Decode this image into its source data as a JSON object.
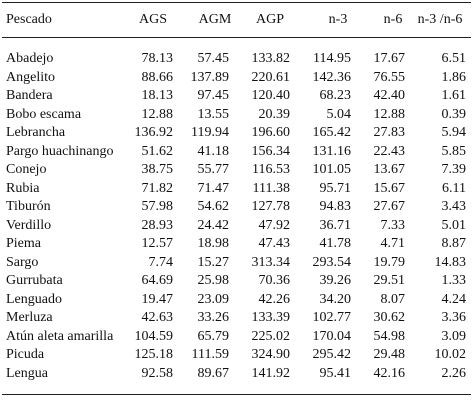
{
  "table": {
    "header": [
      "Pescado",
      "AGS",
      "AGM",
      "AGP",
      "n-3",
      "n-6",
      "n-3 /n-6"
    ],
    "rows": [
      [
        "Abadejo",
        "78.13",
        "57.45",
        "133.82",
        "114.95",
        "17.67",
        "6.51"
      ],
      [
        "Angelito",
        "88.66",
        "137.89",
        "220.61",
        "142.36",
        "76.55",
        "1.86"
      ],
      [
        "Bandera",
        "18.13",
        "97.45",
        "120.40",
        "68.23",
        "42.40",
        "1.61"
      ],
      [
        "Bobo escama",
        "12.88",
        "13.55",
        "20.39",
        "5.04",
        "12.88",
        "0.39"
      ],
      [
        "Lebrancha",
        "136.92",
        "119.94",
        "196.60",
        "165.42",
        "27.83",
        "5.94"
      ],
      [
        "Pargo huachinango",
        "51.62",
        "41.18",
        "156.34",
        "131.16",
        "22.43",
        "5.85"
      ],
      [
        "Conejo",
        "38.75",
        "55.77",
        "116.53",
        "101.05",
        "13.67",
        "7.39"
      ],
      [
        "Rubia",
        "71.82",
        "71.47",
        "111.38",
        "95.71",
        "15.67",
        "6.11"
      ],
      [
        "Tiburón",
        "57.98",
        "54.62",
        "127.78",
        "94.83",
        "27.67",
        "3.43"
      ],
      [
        "Verdillo",
        "28.93",
        "24.42",
        "47.92",
        "36.71",
        "7.33",
        "5.01"
      ],
      [
        "Piema",
        "12.57",
        "18.98",
        "47.43",
        "41.78",
        "4.71",
        "8.87"
      ],
      [
        "Sargo",
        "7.74",
        "15.27",
        "313.34",
        "293.54",
        "19.79",
        "14.83"
      ],
      [
        "Gurrubata",
        "64.69",
        "25.98",
        "70.36",
        "39.26",
        "29.51",
        "1.33"
      ],
      [
        "Lenguado",
        "19.47",
        "23.09",
        "42.26",
        "34.20",
        "8.07",
        "4.24"
      ],
      [
        "Merluza",
        "42.63",
        "33.26",
        "133.39",
        "102.77",
        "30.62",
        "3.36"
      ],
      [
        "Atún aleta amarilla",
        "104.59",
        "65.79",
        "225.02",
        "170.04",
        "54.98",
        "3.09"
      ],
      [
        "Picuda",
        "125.18",
        "111.59",
        "324.90",
        "295.42",
        "29.48",
        "10.02"
      ],
      [
        "Lengua",
        "92.58",
        "89.67",
        "141.92",
        "95.41",
        "42.16",
        "2.26"
      ]
    ]
  }
}
